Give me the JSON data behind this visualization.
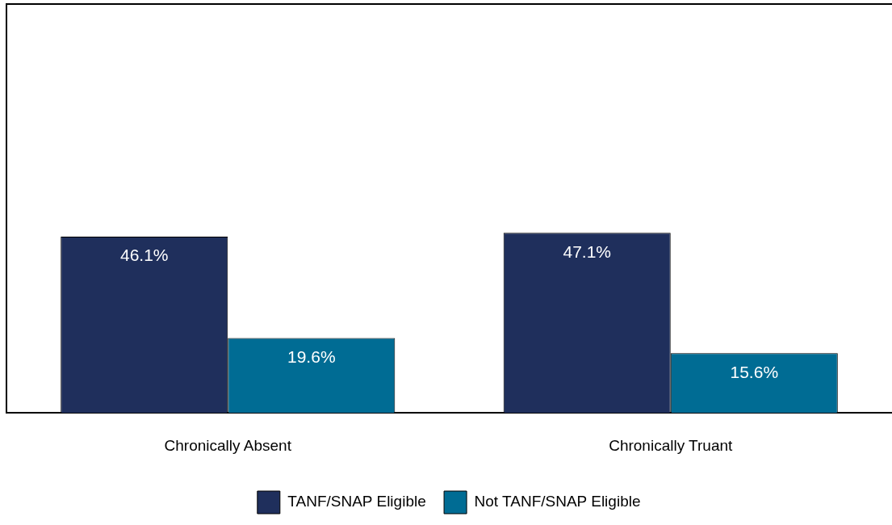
{
  "chart_data": {
    "type": "bar",
    "categories": [
      "Chronically Absent",
      "Chronically Truant"
    ],
    "series": [
      {
        "name": "TANF/SNAP Eligible",
        "color": "#1f2f5c",
        "values": [
          46.1,
          47.1
        ],
        "value_labels": [
          "46.1%",
          "47.1%"
        ]
      },
      {
        "name": "Not TANF/SNAP Eligible",
        "color": "#006c94",
        "values": [
          19.6,
          15.6
        ],
        "value_labels": [
          "19.6%",
          "15.6%"
        ]
      }
    ],
    "legend": "bottom"
  }
}
